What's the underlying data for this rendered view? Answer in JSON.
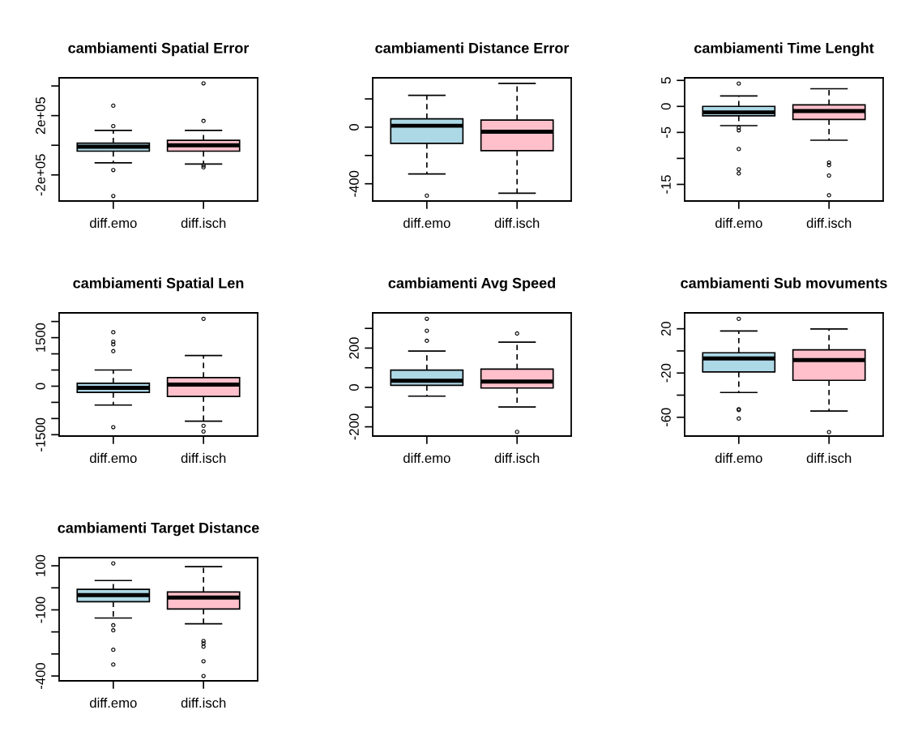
{
  "chart_data": [
    {
      "type": "box",
      "title": "cambiamenti Spatial Error",
      "categories": [
        "diff.emo",
        "diff.isch"
      ],
      "colors": [
        "#add8e6",
        "#ffc0cb"
      ],
      "ylim": [
        -376000,
        455000
      ],
      "yticks": [
        {
          "value": -200000,
          "label": "-2e+05"
        },
        {
          "value": 0,
          "label": null
        },
        {
          "value": 200000,
          "label": "2e+05"
        },
        {
          "value": 400000,
          "label": null
        }
      ],
      "boxes": [
        {
          "low": -118000,
          "q1": -40000,
          "median": -10000,
          "q3": 14500,
          "high": 100000,
          "outliers": [
            267000,
            129000,
            -167000,
            -342000
          ]
        },
        {
          "low": -127000,
          "q1": -40000,
          "median": 0,
          "q3": 33000,
          "high": 100000,
          "outliers": [
            418000,
            164000,
            -136000,
            -149000
          ]
        }
      ]
    },
    {
      "type": "box",
      "title": "cambiamenti Distance Error",
      "categories": [
        "diff.emo",
        "diff.isch"
      ],
      "colors": [
        "#add8e6",
        "#ffc0cb"
      ],
      "ylim": [
        -522,
        349
      ],
      "yticks": [
        {
          "value": -400,
          "label": "-400"
        },
        {
          "value": -200,
          "label": null
        },
        {
          "value": 0,
          "label": "0"
        },
        {
          "value": 200,
          "label": null
        }
      ],
      "boxes": [
        {
          "low": -331,
          "q1": -114,
          "median": 10,
          "q3": 59,
          "high": 225,
          "outliers": [
            -484
          ]
        },
        {
          "low": -467,
          "q1": -166,
          "median": -32,
          "q3": 50,
          "high": 310
        }
      ]
    },
    {
      "type": "box",
      "title": "cambiamenti Time Lenght",
      "categories": [
        "diff.emo",
        "diff.isch"
      ],
      "colors": [
        "#add8e6",
        "#ffc0cb"
      ],
      "ylim": [
        -18.2,
        5.5
      ],
      "yticks": [
        {
          "value": -15,
          "label": "-15"
        },
        {
          "value": -10,
          "label": null
        },
        {
          "value": -5,
          "label": "-5"
        },
        {
          "value": 0,
          "label": "0"
        },
        {
          "value": 5,
          "label": "5"
        }
      ],
      "boxes": [
        {
          "low": -3.7,
          "q1": -1.8,
          "median": -1.15,
          "q3": 0,
          "high": 2,
          "outliers": [
            4.4,
            -4.1,
            -4.6,
            -8.2,
            -12.1,
            -12.9
          ]
        },
        {
          "low": -6.5,
          "q1": -2.5,
          "median": -0.9,
          "q3": 0.3,
          "high": 3.4,
          "outliers": [
            -10.8,
            -11.3,
            -13.3,
            -17.1
          ]
        }
      ]
    },
    {
      "type": "box",
      "title": "cambiamenti Spatial Len",
      "categories": [
        "diff.emo",
        "diff.isch"
      ],
      "colors": [
        "#add8e6",
        "#ffc0cb"
      ],
      "ylim": [
        -1542,
        2267
      ],
      "yticks": [
        {
          "value": -1500,
          "label": "-1500"
        },
        {
          "value": -1000,
          "label": null
        },
        {
          "value": -500,
          "label": null
        },
        {
          "value": 0,
          "label": "0"
        },
        {
          "value": 500,
          "label": null
        },
        {
          "value": 1000,
          "label": null
        },
        {
          "value": 1500,
          "label": "1500"
        },
        {
          "value": 2000,
          "label": null
        }
      ],
      "boxes": [
        {
          "low": -583,
          "q1": -192,
          "median": -50,
          "q3": 92,
          "high": 500,
          "outliers": [
            1667,
            1375,
            1292,
            1083,
            -1267
          ]
        },
        {
          "low": -1083,
          "q1": -317,
          "median": 50,
          "q3": 267,
          "high": 950,
          "outliers": [
            2083,
            -1225,
            -1400
          ]
        }
      ]
    },
    {
      "type": "box",
      "title": "cambiamenti Avg Speed",
      "categories": [
        "diff.emo",
        "diff.isch"
      ],
      "colors": [
        "#add8e6",
        "#ffc0cb"
      ],
      "ylim": [
        -247,
        379
      ],
      "yticks": [
        {
          "value": -200,
          "label": "-200"
        },
        {
          "value": -100,
          "label": null
        },
        {
          "value": 0,
          "label": "0"
        },
        {
          "value": 100,
          "label": null
        },
        {
          "value": 200,
          "label": "200"
        },
        {
          "value": 300,
          "label": null
        }
      ],
      "boxes": [
        {
          "low": -44,
          "q1": 11,
          "median": 34,
          "q3": 88,
          "high": 185,
          "outliers": [
            349,
            288,
            237
          ]
        },
        {
          "low": -99,
          "q1": -3,
          "median": 30,
          "q3": 93,
          "high": 230,
          "outliers": [
            274,
            -226
          ]
        }
      ]
    },
    {
      "type": "box",
      "title": "cambiamenti Sub movuments",
      "categories": [
        "diff.emo",
        "diff.isch"
      ],
      "colors": [
        "#add8e6",
        "#ffc0cb"
      ],
      "ylim": [
        -77,
        34.4
      ],
      "yticks": [
        {
          "value": -60,
          "label": "-60"
        },
        {
          "value": -40,
          "label": null
        },
        {
          "value": -20,
          "label": "-20"
        },
        {
          "value": 0,
          "label": null
        },
        {
          "value": 20,
          "label": "20"
        }
      ],
      "boxes": [
        {
          "low": -37.6,
          "q1": -19,
          "median": -6.8,
          "q3": -1.7,
          "high": 18,
          "outliers": [
            29,
            -52.7,
            -53.4,
            -61.2
          ]
        },
        {
          "low": -54.4,
          "q1": -26.6,
          "median": -8.3,
          "q3": 1.0,
          "high": 19.8,
          "outliers": [
            -73.4
          ]
        }
      ]
    },
    {
      "type": "box",
      "title": "cambiamenti Target Distance",
      "categories": [
        "diff.emo",
        "diff.isch"
      ],
      "colors": [
        "#add8e6",
        "#ffc0cb"
      ],
      "ylim": [
        -422,
        137
      ],
      "yticks": [
        {
          "value": -400,
          "label": "-400"
        },
        {
          "value": -300,
          "label": null
        },
        {
          "value": -200,
          "label": null
        },
        {
          "value": -100,
          "label": "-100"
        },
        {
          "value": 0,
          "label": null
        },
        {
          "value": 100,
          "label": "100"
        }
      ],
      "boxes": [
        {
          "low": -137,
          "q1": -63,
          "median": -33,
          "q3": -7,
          "high": 33,
          "outliers": [
            111,
            -170,
            -193,
            -281,
            -348
          ]
        },
        {
          "low": -163,
          "q1": -96,
          "median": -44,
          "q3": -19,
          "high": 96,
          "outliers": [
            -241,
            -252,
            -267,
            -333,
            -400
          ]
        }
      ]
    }
  ]
}
